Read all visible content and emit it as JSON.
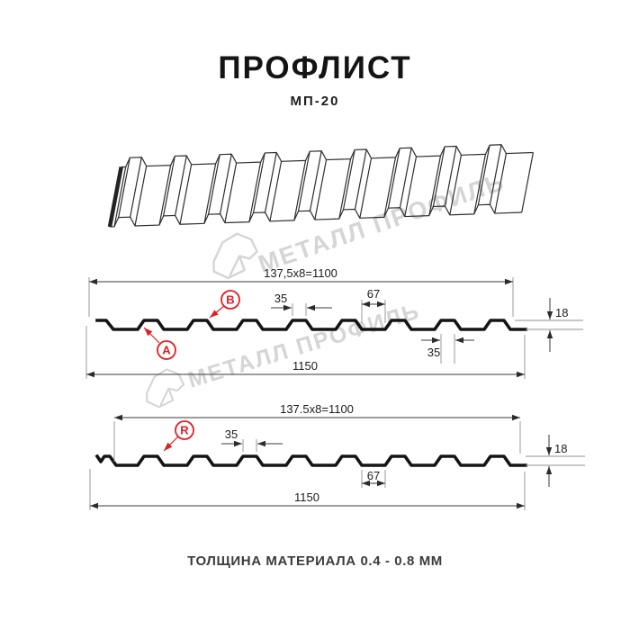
{
  "header": {
    "title": "ПРОФЛИСТ",
    "subtitle": "МП-20"
  },
  "watermark": {
    "brand_text": "МЕТАЛЛ ПРОФИЛЬ"
  },
  "profile_top": {
    "pitch_dim": "137,5x8=1100",
    "rib_top_width": "35",
    "trough_width": "67",
    "height": "18",
    "rib_top_width_lower": "35",
    "overall_width": "1150",
    "callout_a": "A",
    "callout_b": "B"
  },
  "profile_bottom": {
    "pitch_dim": "137.5x8=1100",
    "rib_top_width": "35",
    "trough_width": "67",
    "height": "18",
    "overall_width": "1150",
    "callout_r": "R"
  },
  "footer": {
    "thickness_note": "ТОЛЩИНА МАТЕРИАЛА 0.4 - 0.8 ММ"
  },
  "colors": {
    "accent_red": "#e31e24",
    "drawing_line": "#141414",
    "watermark_gray": "#d5d5d5"
  }
}
